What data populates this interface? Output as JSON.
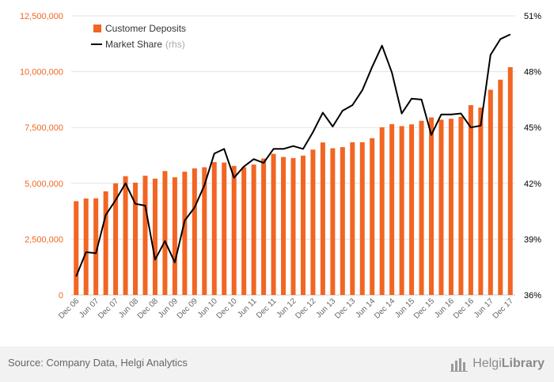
{
  "chart_data": {
    "type": "bar",
    "categories": [
      "Dec 06",
      "Mar 07",
      "Jun 07",
      "Sep 07",
      "Dec 07",
      "Mar 08",
      "Jun 08",
      "Sep 08",
      "Dec 08",
      "Mar 09",
      "Jun 09",
      "Sep 09",
      "Dec 09",
      "Mar 10",
      "Jun 10",
      "Sep 10",
      "Dec 10",
      "Mar 11",
      "Jun 11",
      "Sep 11",
      "Dec 11",
      "Mar 12",
      "Jun 12",
      "Sep 12",
      "Dec 12",
      "Mar 13",
      "Jun 13",
      "Sep 13",
      "Dec 13",
      "Mar 14",
      "Jun 14",
      "Sep 14",
      "Dec 14",
      "Mar 15",
      "Jun 15",
      "Sep 15",
      "Dec 15",
      "Mar 16",
      "Jun 16",
      "Sep 16",
      "Dec 16",
      "Mar 17",
      "Jun 17",
      "Sep 17",
      "Dec 17"
    ],
    "x_tick_labels": [
      "Dec 06",
      "Jun 07",
      "Dec 07",
      "Jun 08",
      "Dec 08",
      "Jun 09",
      "Dec 09",
      "Jun 10",
      "Dec 10",
      "Jun 11",
      "Dec 11",
      "Jun 12",
      "Dec 12",
      "Jun 13",
      "Dec 13",
      "Jun 14",
      "Dec 14",
      "Jun 15",
      "Dec 15",
      "Jun 16",
      "Dec 16",
      "Jun 17",
      "Dec 17"
    ],
    "series": [
      {
        "name": "Customer Deposits",
        "type": "bar",
        "axis": "left",
        "color": "#f26522",
        "values": [
          4200000,
          4320000,
          4330000,
          4640000,
          5000000,
          5320000,
          5030000,
          5340000,
          5210000,
          5550000,
          5270000,
          5520000,
          5670000,
          5720000,
          5950000,
          5930000,
          5780000,
          5720000,
          5840000,
          6110000,
          6320000,
          6180000,
          6130000,
          6240000,
          6510000,
          6830000,
          6570000,
          6620000,
          6840000,
          6840000,
          7020000,
          7510000,
          7650000,
          7560000,
          7640000,
          7800000,
          7950000,
          7850000,
          7890000,
          7980000,
          8500000,
          8390000,
          9190000,
          9640000,
          10200000
        ]
      },
      {
        "name": "Market Share",
        "type": "line",
        "axis": "right",
        "color": "#000000",
        "values": [
          37.0,
          38.3,
          38.25,
          40.3,
          41.1,
          42.0,
          40.9,
          40.8,
          37.9,
          38.9,
          37.75,
          40.0,
          40.7,
          41.9,
          43.6,
          43.85,
          42.3,
          42.9,
          43.3,
          43.1,
          43.85,
          43.85,
          44.0,
          43.85,
          44.75,
          45.8,
          45.05,
          45.9,
          46.2,
          47.0,
          48.25,
          49.4,
          47.95,
          45.75,
          46.55,
          46.5,
          44.6,
          45.7,
          45.7,
          45.75,
          45.0,
          45.1,
          48.9,
          49.75,
          50.0
        ]
      }
    ],
    "legend": [
      {
        "label": "Customer Deposits",
        "suffix": ""
      },
      {
        "label": "Market Share",
        "suffix": "(rhs)"
      }
    ],
    "y_left": {
      "min": 0,
      "max": 12500000,
      "ticks": [
        "0",
        "2,500,000",
        "5,000,000",
        "7,500,000",
        "10,000,000",
        "12,500,000"
      ],
      "color": "#f26522"
    },
    "y_right": {
      "min": 36,
      "max": 51,
      "ticks": [
        "36%",
        "39%",
        "42%",
        "45%",
        "48%",
        "51%"
      ],
      "color": "#000000"
    },
    "grid": true,
    "legend_position": "top-left"
  },
  "footer": {
    "source": "Source: Company Data, Helgi Analytics",
    "logo_light": "Helgi",
    "logo_bold": "Library"
  },
  "icons": {
    "logo": "bar-chart-icon"
  }
}
